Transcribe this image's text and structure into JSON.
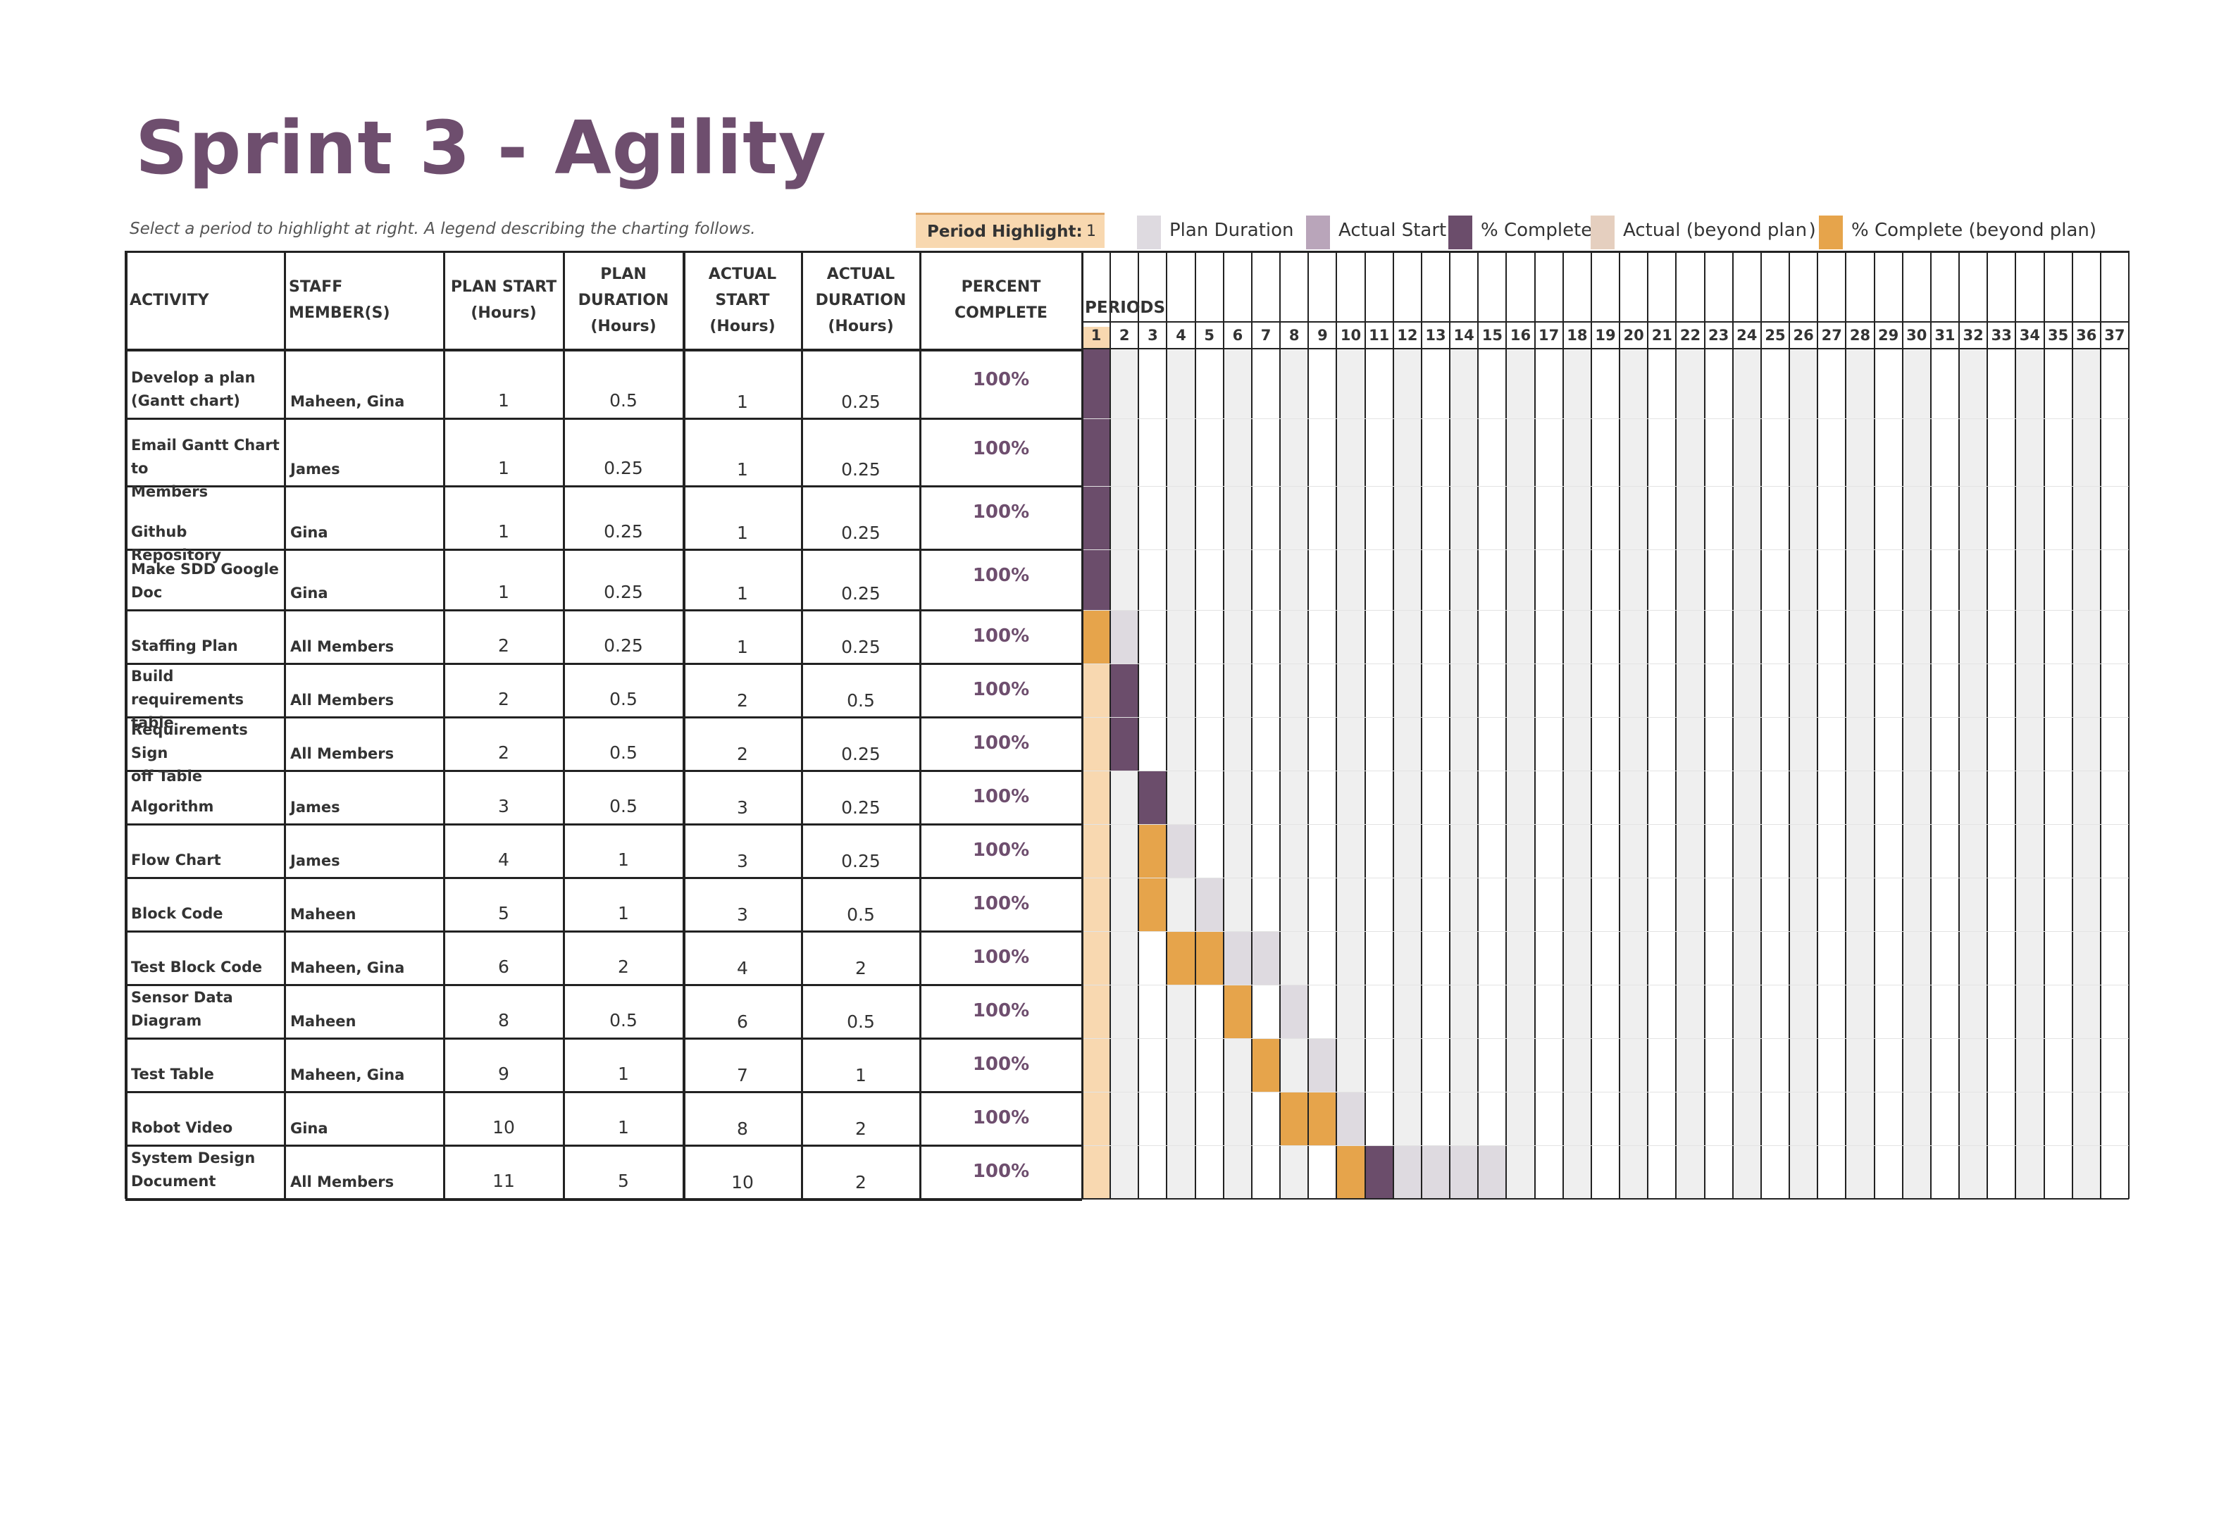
{
  "title": "Sprint 3 - Agility",
  "subtitle": "Select a period to highlight at right.  A legend describing the charting follows.",
  "period_highlight": {
    "label": "Period Highlight:",
    "value": "1"
  },
  "legend": [
    {
      "label": "Plan Duration",
      "color": "#dedae0"
    },
    {
      "label": "Actual Start",
      "color": "#b9a5ba"
    },
    {
      "label": "% Complete",
      "color": "#6b4d6b"
    },
    {
      "label": "Actual (beyond plan )",
      "color": "#e5cfbf"
    },
    {
      "label": "% Complete (beyond plan)",
      "color": "#e6a44b"
    }
  ],
  "columns": {
    "activity": "ACTIVITY",
    "staff": [
      "STAFF",
      "MEMBER(S)"
    ],
    "plan_start": [
      "PLAN START",
      "(Hours)"
    ],
    "plan_duration": [
      "PLAN",
      "DURATION",
      "(Hours)"
    ],
    "actual_start": [
      "ACTUAL",
      "START",
      "(Hours)"
    ],
    "actual_duration": [
      "ACTUAL",
      "DURATION",
      "(Hours)"
    ],
    "percent_complete": [
      "PERCENT",
      "COMPLETE"
    ],
    "periods": "PERIODS"
  },
  "period_count": 37,
  "colors": {
    "accent": "#6e4e6e",
    "highlight": "#f8d8b0",
    "plan": "#dedae0",
    "complete": "#6b4d6b",
    "complete_beyond": "#e6a44b",
    "column_shade": "#efefef"
  },
  "activities": [
    {
      "name": [
        "Develop a plan",
        "(Gantt chart)"
      ],
      "staff": "Maheen, Gina",
      "plan_start": "1",
      "plan_duration": "0.5",
      "actual_start": "1",
      "actual_duration": "0.25",
      "percent": "100%"
    },
    {
      "name": [
        "Email Gantt Chart to",
        "Members"
      ],
      "staff": "James",
      "plan_start": "1",
      "plan_duration": "0.25",
      "actual_start": "1",
      "actual_duration": "0.25",
      "percent": "100%"
    },
    {
      "name": [
        "Github Repository"
      ],
      "staff": "Gina",
      "plan_start": "1",
      "plan_duration": "0.25",
      "actual_start": "1",
      "actual_duration": "0.25",
      "percent": "100%"
    },
    {
      "name": [
        "Make SDD Google",
        "Doc"
      ],
      "staff": "Gina",
      "plan_start": "1",
      "plan_duration": "0.25",
      "actual_start": "1",
      "actual_duration": "0.25",
      "percent": "100%"
    },
    {
      "name": [
        "Staffing Plan"
      ],
      "staff": "All Members",
      "plan_start": "2",
      "plan_duration": "0.25",
      "actual_start": "1",
      "actual_duration": "0.25",
      "percent": "100%"
    },
    {
      "name": [
        "Build requirements",
        "table"
      ],
      "staff": "All Members",
      "plan_start": "2",
      "plan_duration": "0.5",
      "actual_start": "2",
      "actual_duration": "0.5",
      "percent": "100%"
    },
    {
      "name": [
        "Requirements Sign",
        "off Table"
      ],
      "staff": "All Members",
      "plan_start": "2",
      "plan_duration": "0.5",
      "actual_start": "2",
      "actual_duration": "0.25",
      "percent": "100%"
    },
    {
      "name": [
        "Algorithm"
      ],
      "staff": "James",
      "plan_start": "3",
      "plan_duration": "0.5",
      "actual_start": "3",
      "actual_duration": "0.25",
      "percent": "100%"
    },
    {
      "name": [
        "Flow Chart"
      ],
      "staff": "James",
      "plan_start": "4",
      "plan_duration": "1",
      "actual_start": "3",
      "actual_duration": "0.25",
      "percent": "100%"
    },
    {
      "name": [
        "Block Code"
      ],
      "staff": "Maheen",
      "plan_start": "5",
      "plan_duration": "1",
      "actual_start": "3",
      "actual_duration": "0.5",
      "percent": "100%"
    },
    {
      "name": [
        "Test Block Code"
      ],
      "staff": "Maheen, Gina",
      "plan_start": "6",
      "plan_duration": "2",
      "actual_start": "4",
      "actual_duration": "2",
      "percent": "100%"
    },
    {
      "name": [
        "Sensor Data",
        "Diagram"
      ],
      "staff": "Maheen",
      "plan_start": "8",
      "plan_duration": "0.5",
      "actual_start": "6",
      "actual_duration": "0.5",
      "percent": "100%"
    },
    {
      "name": [
        "Test Table"
      ],
      "staff": "Maheen, Gina",
      "plan_start": "9",
      "plan_duration": "1",
      "actual_start": "7",
      "actual_duration": "1",
      "percent": "100%"
    },
    {
      "name": [
        "Robot Video"
      ],
      "staff": "Gina",
      "plan_start": "10",
      "plan_duration": "1",
      "actual_start": "8",
      "actual_duration": "2",
      "percent": "100%"
    },
    {
      "name": [
        "System Design",
        "Document"
      ],
      "staff": "All Members",
      "plan_start": "11",
      "plan_duration": "5",
      "actual_start": "10",
      "actual_duration": "2",
      "percent": "100%"
    }
  ]
}
